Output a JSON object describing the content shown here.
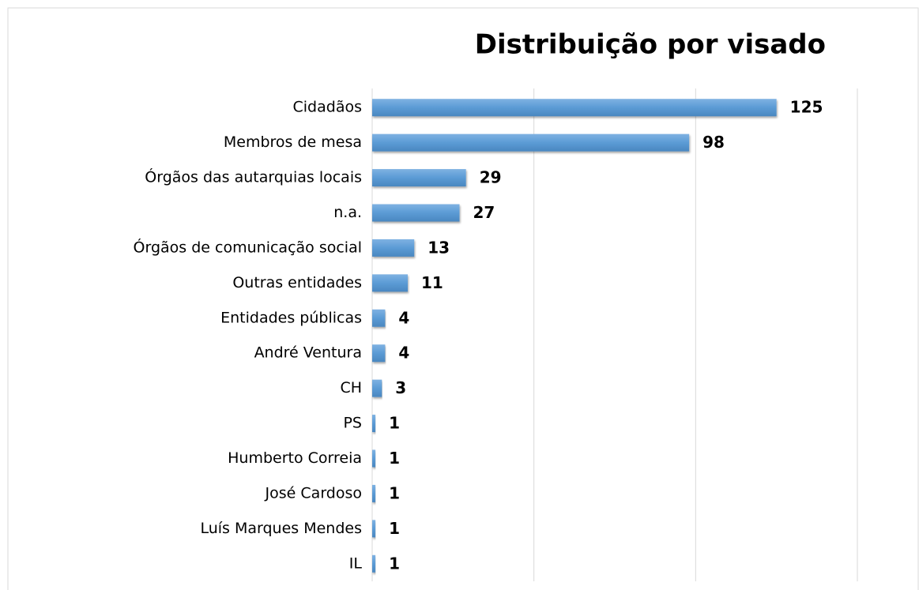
{
  "chart_data": {
    "type": "bar",
    "orientation": "horizontal",
    "title": "Distribuição por visado",
    "categories": [
      "Cidadãos",
      "Membros de mesa",
      "Órgãos das autarquias locais",
      "n.a.",
      "Órgãos de comunicação social",
      "Outras entidades",
      "Entidades públicas",
      "André Ventura",
      "CH",
      "PS",
      "Humberto Correia",
      "José Cardoso",
      "Luís Marques Mendes",
      "IL"
    ],
    "values": [
      125,
      98,
      29,
      27,
      13,
      11,
      4,
      4,
      3,
      1,
      1,
      1,
      1,
      1
    ],
    "color": "#5b9bd5",
    "xlim": [
      0,
      150
    ],
    "xticks": [
      0,
      50,
      100,
      150
    ],
    "grid": true
  }
}
